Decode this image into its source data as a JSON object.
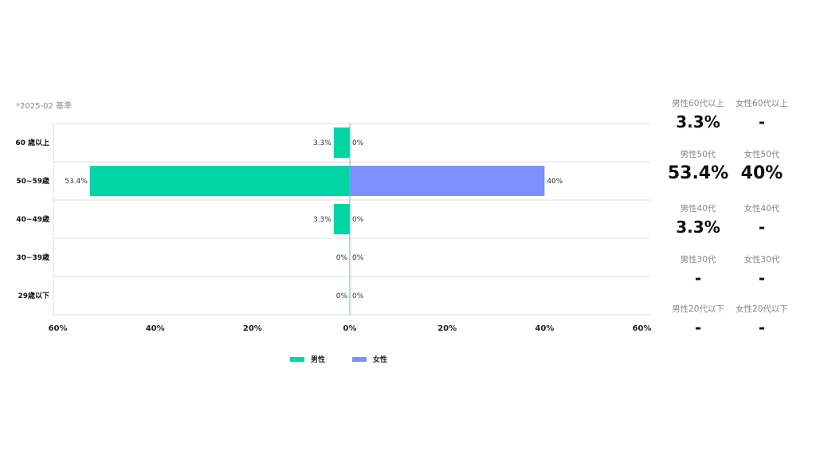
{
  "note": "*2025-02 基準",
  "colors": {
    "male": "#00d5a4",
    "female": "#7b91fd",
    "grid": "#dddddd",
    "axis": "#5bc0c8"
  },
  "chart_data": {
    "type": "bar",
    "orientation": "horizontal-diverging",
    "categories": [
      "60 歳以上",
      "50~59歳",
      "40~49歳",
      "30~39歳",
      "29歳以下"
    ],
    "series": [
      {
        "name": "男性",
        "values": [
          3.3,
          53.4,
          3.3,
          0,
          0
        ],
        "labels": [
          "3.3%",
          "53.4%",
          "3.3%",
          "0%",
          "0%"
        ]
      },
      {
        "name": "女性",
        "values": [
          0,
          40,
          0,
          0,
          0
        ],
        "labels": [
          "0%",
          "40%",
          "0%",
          "0%",
          "0%"
        ]
      }
    ],
    "x_ticks": [
      "60%",
      "40%",
      "20%",
      "0%",
      "20%",
      "40%",
      "60%"
    ],
    "xlim": [
      -60,
      60
    ],
    "legend": [
      "男性",
      "女性"
    ],
    "legend_position": "bottom"
  },
  "stats": [
    {
      "left_label": "男性60代以上",
      "left_value": "3.3%",
      "right_label": "女性60代以上",
      "right_value": "-"
    },
    {
      "left_label": "男性50代",
      "left_value": "53.4%",
      "right_label": "女性50代",
      "right_value": "40%"
    },
    {
      "left_label": "男性40代",
      "left_value": "3.3%",
      "right_label": "女性40代",
      "right_value": "-"
    },
    {
      "left_label": "男性30代",
      "left_value": "-",
      "right_label": "女性30代",
      "right_value": "-"
    },
    {
      "left_label": "男性20代以下",
      "left_value": "-",
      "right_label": "女性20代以下",
      "right_value": "-"
    }
  ]
}
